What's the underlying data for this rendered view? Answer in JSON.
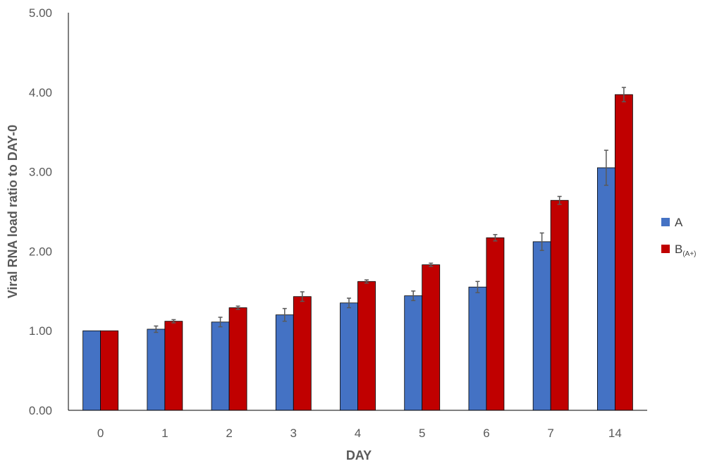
{
  "chart_data": {
    "type": "bar",
    "title": "",
    "xlabel": "DAY",
    "ylabel": "Viral RNA load ratio to DAY-0",
    "categories": [
      "0",
      "1",
      "2",
      "3",
      "4",
      "5",
      "6",
      "7",
      "14"
    ],
    "ylim": [
      0,
      5
    ],
    "yticks": [
      "0.00",
      "1.00",
      "2.00",
      "3.00",
      "4.00",
      "5.00"
    ],
    "grid": false,
    "legend_position": "right",
    "series": [
      {
        "name": "A",
        "color": "#4472C4",
        "values": [
          1.0,
          1.02,
          1.11,
          1.2,
          1.35,
          1.44,
          1.55,
          2.12,
          3.05
        ],
        "errors": [
          0.0,
          0.04,
          0.06,
          0.08,
          0.06,
          0.06,
          0.07,
          0.11,
          0.22
        ]
      },
      {
        "name": "B",
        "name_subscript": "(A+)",
        "color": "#C00000",
        "values": [
          1.0,
          1.12,
          1.29,
          1.43,
          1.62,
          1.83,
          2.17,
          2.64,
          3.97
        ],
        "errors": [
          0.0,
          0.02,
          0.02,
          0.06,
          0.02,
          0.02,
          0.04,
          0.05,
          0.09
        ]
      }
    ],
    "error_bar_color": "#595959"
  }
}
